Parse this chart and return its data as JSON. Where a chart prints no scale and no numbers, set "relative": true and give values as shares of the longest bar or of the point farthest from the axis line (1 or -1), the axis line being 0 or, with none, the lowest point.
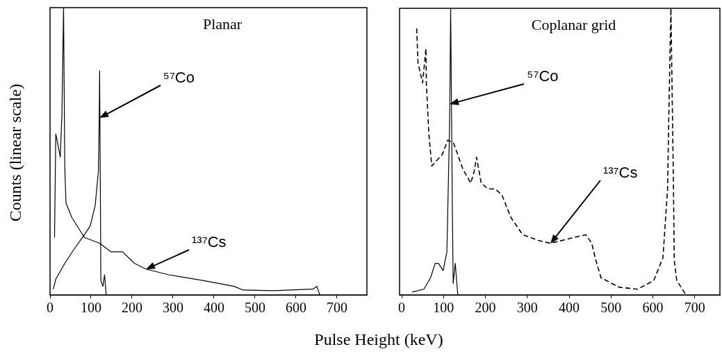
{
  "chart_data": [
    {
      "type": "line",
      "title": "Planar",
      "ylabel": "Counts (linear scale)",
      "xlabel": "Pulse Height (keV)",
      "relative": true,
      "xlim": [
        0,
        773
      ],
      "xticks": [
        0,
        100,
        200,
        300,
        400,
        500,
        600,
        700
      ],
      "grid": false,
      "legend": false,
      "marker": "none",
      "series": [
        {
          "name": "⁵⁷Co",
          "color": "#000000",
          "x": [
            8,
            14,
            36,
            59,
            84,
            98,
            110,
            118,
            120,
            121,
            123,
            124,
            129,
            133,
            137
          ],
          "values": [
            0.02,
            0.055,
            0.11,
            0.16,
            0.21,
            0.24,
            0.31,
            0.43,
            0.62,
            0.78,
            0.31,
            0.05,
            0.03,
            0.07,
            0
          ]
        },
        {
          "name": "¹³⁷Cs",
          "color": "#000000",
          "x": [
            11,
            14,
            17,
            25,
            29,
            33,
            36,
            39,
            53,
            84,
            121,
            149,
            177,
            206,
            234,
            290,
            375,
            449,
            471,
            544,
            641,
            651,
            658
          ],
          "values": [
            0.2,
            0.56,
            0.54,
            0.48,
            0.63,
            1.0,
            0.44,
            0.32,
            0.27,
            0.2,
            0.18,
            0.15,
            0.15,
            0.11,
            0.09,
            0.07,
            0.05,
            0.03,
            0.017,
            0.015,
            0.02,
            0.03,
            0
          ]
        }
      ]
    },
    {
      "type": "line",
      "title": "Coplanar grid",
      "relative": true,
      "xlim": [
        -5,
        760
      ],
      "xticks": [
        0,
        100,
        200,
        300,
        400,
        500,
        600,
        700
      ],
      "grid": false,
      "legend": false,
      "marker": "none",
      "series": [
        {
          "name": "⁵⁷Co",
          "color": "#000000",
          "x": [
            25,
            53,
            69,
            80,
            88,
            99,
            108,
            114,
            115,
            117,
            121,
            123,
            128,
            134
          ],
          "values": [
            0.01,
            0.02,
            0.06,
            0.11,
            0.11,
            0.085,
            0.15,
            0.56,
            0.66,
            1.0,
            0.31,
            0.04,
            0.11,
            0
          ]
        },
        {
          "name": "¹³⁷Cs",
          "color": "#000000",
          "line_style": "dashed",
          "x": [
            36,
            39,
            50,
            58,
            59,
            65,
            72,
            97,
            110,
            124,
            146,
            165,
            173,
            179,
            190,
            206,
            223,
            239,
            261,
            289,
            327,
            355,
            410,
            440,
            454,
            462,
            476,
            519,
            563,
            602,
            624,
            635,
            638,
            643,
            649,
            651,
            657,
            679
          ],
          "values": [
            0.93,
            0.81,
            0.74,
            0.86,
            0.74,
            0.56,
            0.45,
            0.49,
            0.54,
            0.53,
            0.44,
            0.39,
            0.43,
            0.48,
            0.39,
            0.37,
            0.37,
            0.35,
            0.27,
            0.21,
            0.19,
            0.18,
            0.2,
            0.21,
            0.18,
            0.13,
            0.06,
            0.027,
            0.02,
            0.05,
            0.13,
            0.37,
            0.63,
            1.0,
            0.39,
            0.12,
            0.05,
            0
          ]
        }
      ]
    }
  ]
}
